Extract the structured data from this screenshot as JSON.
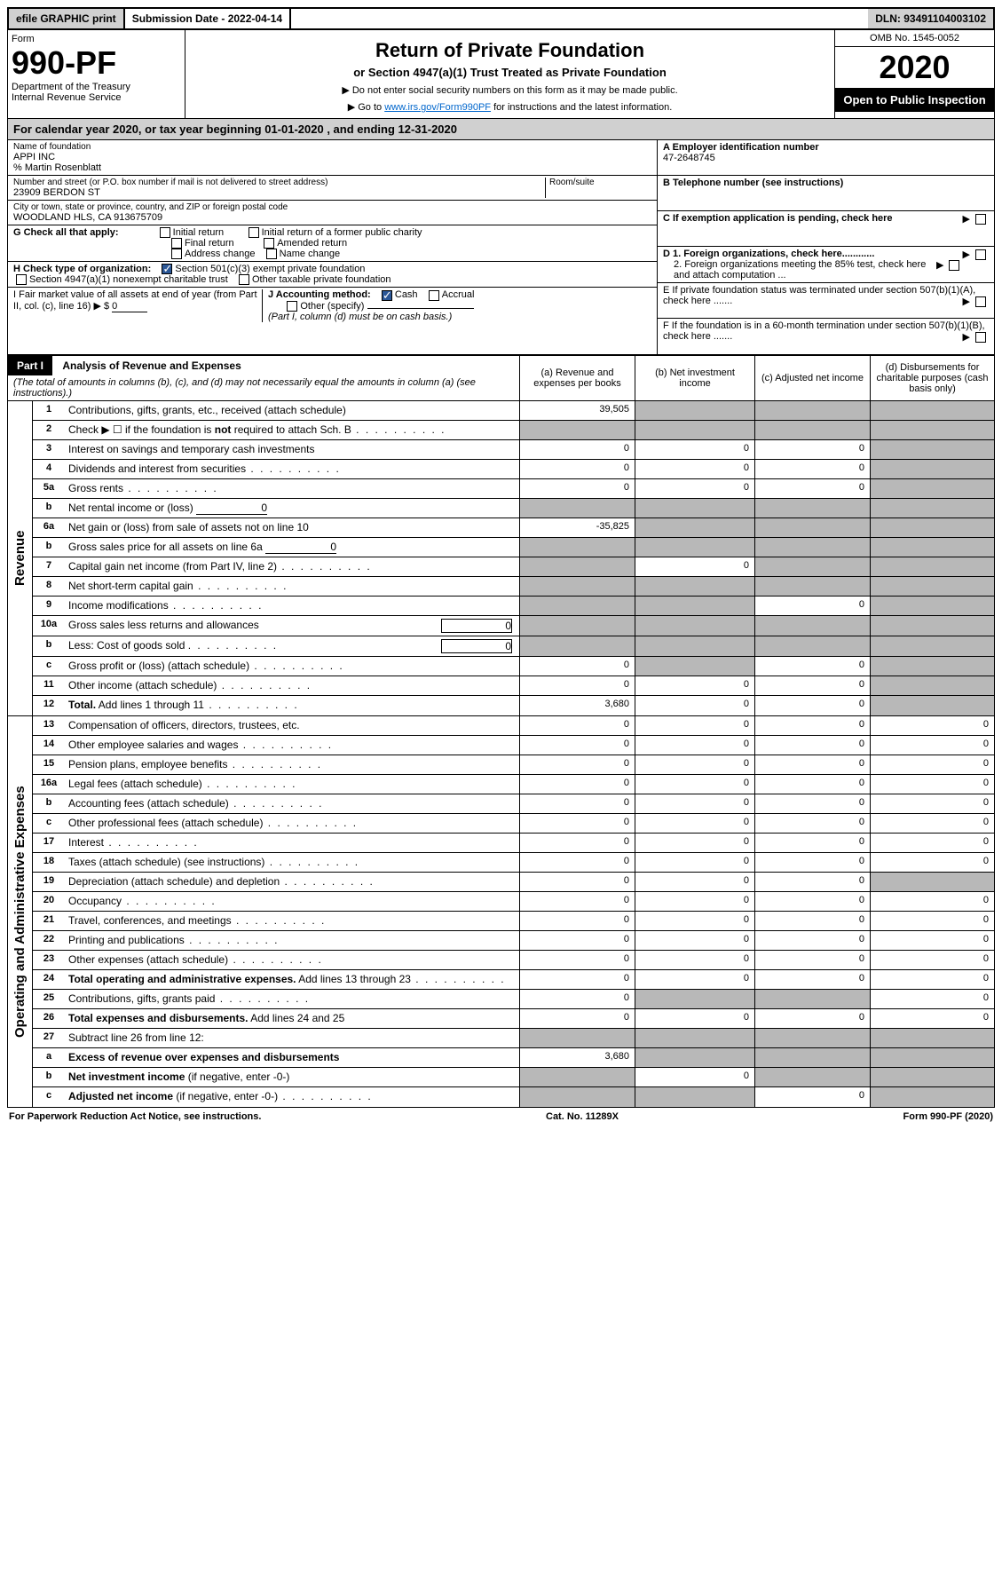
{
  "topbar": {
    "efile": "efile GRAPHIC print",
    "submission_label": "Submission Date - 2022-04-14",
    "dln": "DLN: 93491104003102"
  },
  "header": {
    "form_word": "Form",
    "form_number": "990-PF",
    "dept": "Department of the Treasury",
    "irs": "Internal Revenue Service",
    "title": "Return of Private Foundation",
    "subtitle": "or Section 4947(a)(1) Trust Treated as Private Foundation",
    "note1": "▶ Do not enter social security numbers on this form as it may be made public.",
    "note2_pre": "▶ Go to ",
    "note2_link": "www.irs.gov/Form990PF",
    "note2_post": " for instructions and the latest information.",
    "omb": "OMB No. 1545-0052",
    "year": "2020",
    "open": "Open to Public Inspection"
  },
  "calyear": "For calendar year 2020, or tax year beginning 01-01-2020                               , and ending 12-31-2020",
  "info": {
    "name_lbl": "Name of foundation",
    "name": "APPI INC",
    "care_of": "% Martin Rosenblatt",
    "addr_lbl": "Number and street (or P.O. box number if mail is not delivered to street address)",
    "addr": "23909 BERDON ST",
    "room_lbl": "Room/suite",
    "city_lbl": "City or town, state or province, country, and ZIP or foreign postal code",
    "city": "WOODLAND HLS, CA  913675709",
    "a_lbl": "A Employer identification number",
    "a_val": "47-2648745",
    "b_lbl": "B Telephone number (see instructions)",
    "c_lbl": "C If exemption application is pending, check here",
    "d1_lbl": "D 1. Foreign organizations, check here............",
    "d2_lbl": "2. Foreign organizations meeting the 85% test, check here and attach computation ...",
    "e_lbl": "E  If private foundation status was terminated under section 507(b)(1)(A), check here .......",
    "f_lbl": "F  If the foundation is in a 60-month termination under section 507(b)(1)(B), check here .......",
    "g_lbl": "G Check all that apply:",
    "g_opts": [
      "Initial return",
      "Final return",
      "Address change",
      "Initial return of a former public charity",
      "Amended return",
      "Name change"
    ],
    "h_lbl": "H Check type of organization:",
    "h_opts": [
      "Section 501(c)(3) exempt private foundation",
      "Section 4947(a)(1) nonexempt charitable trust",
      "Other taxable private foundation"
    ],
    "i_lbl": "I Fair market value of all assets at end of year (from Part II, col. (c), line 16) ▶ $",
    "i_val": "0",
    "j_lbl": "J Accounting method:",
    "j_opts": [
      "Cash",
      "Accrual"
    ],
    "j_other": "Other (specify)",
    "j_note": "(Part I, column (d) must be on cash basis.)"
  },
  "part1": {
    "label": "Part I",
    "title": "Analysis of Revenue and Expenses",
    "title_note": "(The total of amounts in columns (b), (c), and (d) may not necessarily equal the amounts in column (a) (see instructions).)",
    "col_a": "(a)  Revenue and expenses per books",
    "col_b": "(b)  Net investment income",
    "col_c": "(c)  Adjusted net income",
    "col_d": "(d)  Disbursements for charitable purposes (cash basis only)"
  },
  "side_labels": {
    "revenue": "Revenue",
    "expenses": "Operating and Administrative Expenses"
  },
  "rows": [
    {
      "n": "1",
      "d": "Contributions, gifts, grants, etc., received (attach schedule)",
      "a": "39,505",
      "bShade": true,
      "cShade": true,
      "dShade": true
    },
    {
      "n": "2",
      "d": "Check ▶ ☐ if the foundation is <b>not</b> required to attach Sch. B",
      "dots": true,
      "aShade": true,
      "bShade": true,
      "cShade": true,
      "dShade": true
    },
    {
      "n": "3",
      "d": "Interest on savings and temporary cash investments",
      "a": "0",
      "b": "0",
      "c": "0",
      "dShade": true
    },
    {
      "n": "4",
      "d": "Dividends and interest from securities",
      "dots": true,
      "a": "0",
      "b": "0",
      "c": "0",
      "dShade": true
    },
    {
      "n": "5a",
      "d": "Gross rents",
      "dots": true,
      "a": "0",
      "b": "0",
      "c": "0",
      "dShade": true
    },
    {
      "n": "b",
      "d": "Net rental income or (loss)",
      "inline": "0",
      "aShade": true,
      "bShade": true,
      "cShade": true,
      "dShade": true
    },
    {
      "n": "6a",
      "d": "Net gain or (loss) from sale of assets not on line 10",
      "a": "-35,825",
      "bShade": true,
      "cShade": true,
      "dShade": true
    },
    {
      "n": "b",
      "d": "Gross sales price for all assets on line 6a",
      "inline": "0",
      "aShade": true,
      "bShade": true,
      "cShade": true,
      "dShade": true
    },
    {
      "n": "7",
      "d": "Capital gain net income (from Part IV, line 2)",
      "dots": true,
      "aShade": true,
      "b": "0",
      "cShade": true,
      "dShade": true
    },
    {
      "n": "8",
      "d": "Net short-term capital gain",
      "dots": true,
      "aShade": true,
      "bShade": true,
      "cShade": true,
      "dShade": true
    },
    {
      "n": "9",
      "d": "Income modifications",
      "dots": true,
      "aShade": true,
      "bShade": true,
      "c": "0",
      "dShade": true
    },
    {
      "n": "10a",
      "d": "Gross sales less returns and allowances",
      "inlineBox": "0",
      "aShade": true,
      "bShade": true,
      "cShade": true,
      "dShade": true
    },
    {
      "n": "b",
      "d": "Less: Cost of goods sold",
      "dots": true,
      "inlineBox": "0",
      "aShade": true,
      "bShade": true,
      "cShade": true,
      "dShade": true
    },
    {
      "n": "c",
      "d": "Gross profit or (loss) (attach schedule)",
      "dots": true,
      "a": "0",
      "bShade": true,
      "c": "0",
      "dShade": true
    },
    {
      "n": "11",
      "d": "Other income (attach schedule)",
      "dots": true,
      "a": "0",
      "b": "0",
      "c": "0",
      "dShade": true
    },
    {
      "n": "12",
      "d": "<b>Total.</b> Add lines 1 through 11",
      "dots": true,
      "a": "3,680",
      "b": "0",
      "c": "0",
      "dShade": true
    }
  ],
  "exp_rows": [
    {
      "n": "13",
      "d": "Compensation of officers, directors, trustees, etc.",
      "a": "0",
      "b": "0",
      "c": "0",
      "dd": "0"
    },
    {
      "n": "14",
      "d": "Other employee salaries and wages",
      "dots": true,
      "a": "0",
      "b": "0",
      "c": "0",
      "dd": "0"
    },
    {
      "n": "15",
      "d": "Pension plans, employee benefits",
      "dots": true,
      "a": "0",
      "b": "0",
      "c": "0",
      "dd": "0"
    },
    {
      "n": "16a",
      "d": "Legal fees (attach schedule)",
      "dots": true,
      "a": "0",
      "b": "0",
      "c": "0",
      "dd": "0"
    },
    {
      "n": "b",
      "d": "Accounting fees (attach schedule)",
      "dots": true,
      "a": "0",
      "b": "0",
      "c": "0",
      "dd": "0"
    },
    {
      "n": "c",
      "d": "Other professional fees (attach schedule)",
      "dots": true,
      "a": "0",
      "b": "0",
      "c": "0",
      "dd": "0"
    },
    {
      "n": "17",
      "d": "Interest",
      "dots": true,
      "a": "0",
      "b": "0",
      "c": "0",
      "dd": "0"
    },
    {
      "n": "18",
      "d": "Taxes (attach schedule) (see instructions)",
      "dots": true,
      "a": "0",
      "b": "0",
      "c": "0",
      "dd": "0"
    },
    {
      "n": "19",
      "d": "Depreciation (attach schedule) and depletion",
      "dots": true,
      "a": "0",
      "b": "0",
      "c": "0",
      "dShade": true
    },
    {
      "n": "20",
      "d": "Occupancy",
      "dots": true,
      "a": "0",
      "b": "0",
      "c": "0",
      "dd": "0"
    },
    {
      "n": "21",
      "d": "Travel, conferences, and meetings",
      "dots": true,
      "a": "0",
      "b": "0",
      "c": "0",
      "dd": "0"
    },
    {
      "n": "22",
      "d": "Printing and publications",
      "dots": true,
      "a": "0",
      "b": "0",
      "c": "0",
      "dd": "0"
    },
    {
      "n": "23",
      "d": "Other expenses (attach schedule)",
      "dots": true,
      "a": "0",
      "b": "0",
      "c": "0",
      "dd": "0"
    },
    {
      "n": "24",
      "d": "<b>Total operating and administrative expenses.</b> Add lines 13 through 23",
      "dots": true,
      "a": "0",
      "b": "0",
      "c": "0",
      "dd": "0"
    },
    {
      "n": "25",
      "d": "Contributions, gifts, grants paid",
      "dots": true,
      "a": "0",
      "bShade": true,
      "cShade": true,
      "dd": "0"
    },
    {
      "n": "26",
      "d": "<b>Total expenses and disbursements.</b> Add lines 24 and 25",
      "a": "0",
      "b": "0",
      "c": "0",
      "dd": "0"
    },
    {
      "n": "27",
      "d": "Subtract line 26 from line 12:",
      "aShade": true,
      "bShade": true,
      "cShade": true,
      "dShade": true
    },
    {
      "n": "a",
      "d": "<b>Excess of revenue over expenses and disbursements</b>",
      "a": "3,680",
      "bShade": true,
      "cShade": true,
      "dShade": true
    },
    {
      "n": "b",
      "d": "<b>Net investment income</b> (if negative, enter -0-)",
      "aShade": true,
      "b": "0",
      "cShade": true,
      "dShade": true
    },
    {
      "n": "c",
      "d": "<b>Adjusted net income</b> (if negative, enter -0-)",
      "dots": true,
      "aShade": true,
      "bShade": true,
      "c": "0",
      "dShade": true
    }
  ],
  "footer": {
    "left": "For Paperwork Reduction Act Notice, see instructions.",
    "mid": "Cat. No. 11289X",
    "right": "Form 990-PF (2020)"
  }
}
